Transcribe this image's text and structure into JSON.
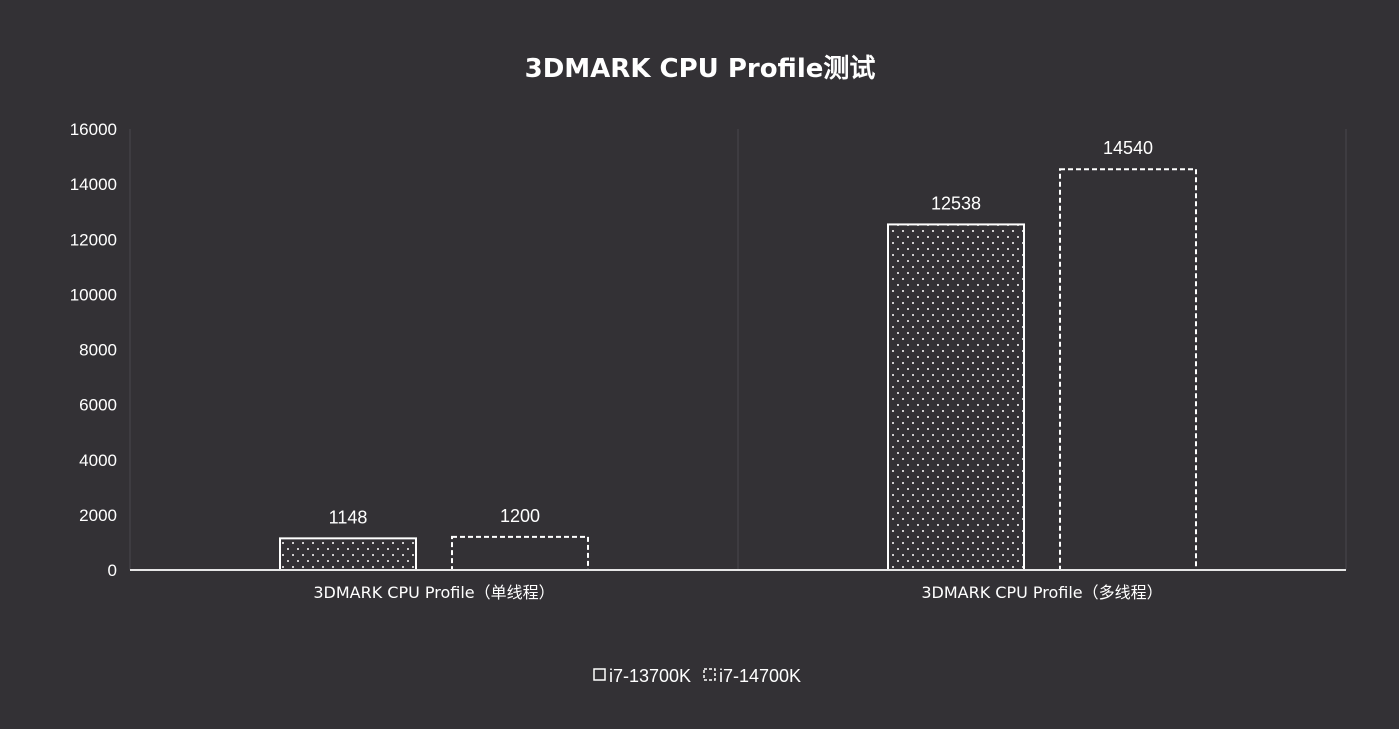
{
  "chart_data": {
    "type": "bar",
    "title": "3DMARK CPU Profile测试",
    "categories": [
      "3DMARK CPU Profile（单线程）",
      "3DMARK CPU Profile（多线程）"
    ],
    "series": [
      {
        "name": "i7-13700K",
        "values": [
          1148,
          12538
        ],
        "pattern": "dots",
        "border": "solid"
      },
      {
        "name": "i7-14700K",
        "values": [
          1200,
          14540
        ],
        "pattern": "none",
        "border": "dashed"
      }
    ],
    "ylim": [
      0,
      16000
    ],
    "yticks": [
      0,
      2000,
      4000,
      6000,
      8000,
      10000,
      12000,
      14000,
      16000
    ],
    "grid": "vertical-separators",
    "legend": "bottom-center",
    "colors": {
      "background": "#333135",
      "bar_outline": "#ffffff",
      "text": "#ffffff",
      "grid": "#4a484d",
      "axis": "#e6e6e6"
    }
  }
}
